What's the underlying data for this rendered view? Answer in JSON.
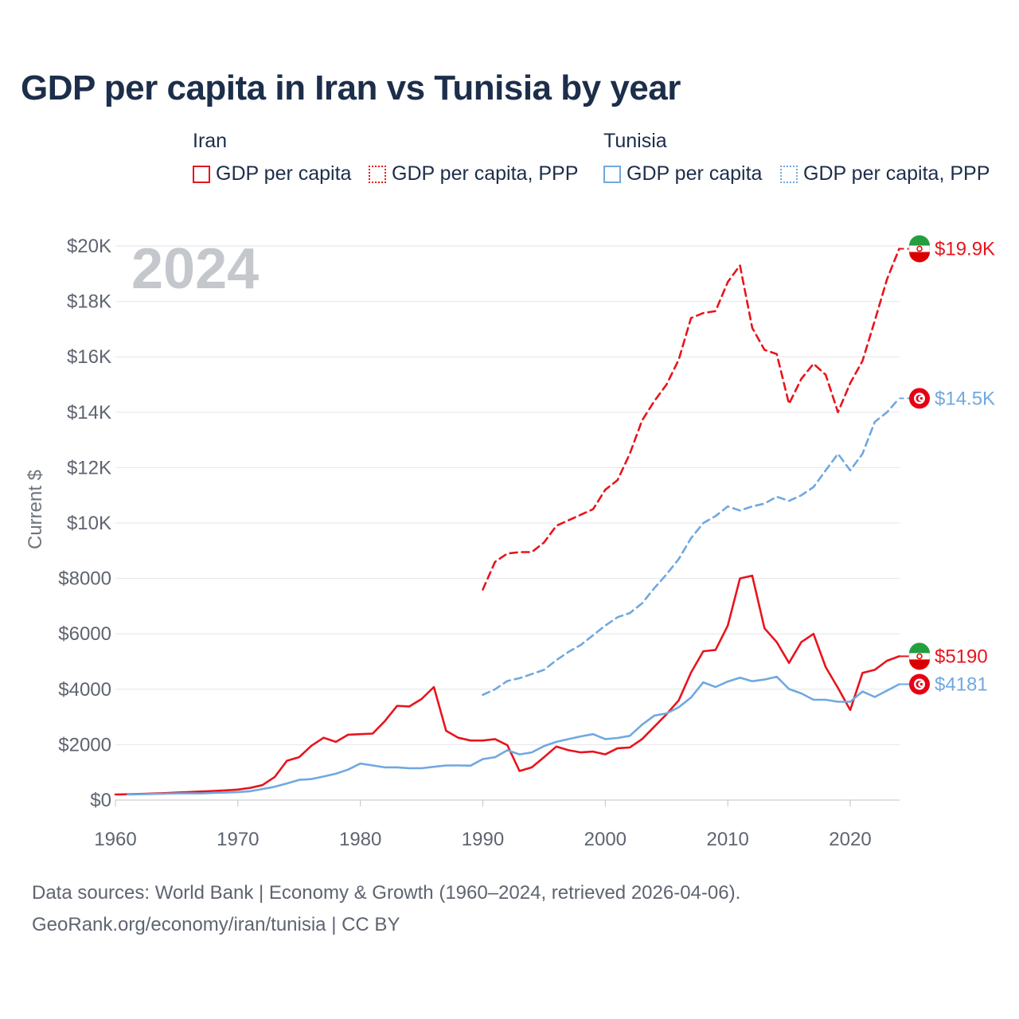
{
  "title": "GDP per capita in Iran vs Tunisia by year",
  "legend": {
    "groups": [
      {
        "name": "Iran",
        "items": [
          "GDP per capita",
          "GDP per capita, PPP"
        ]
      },
      {
        "name": "Tunisia",
        "items": [
          "GDP per capita",
          "GDP per capita, PPP"
        ]
      }
    ]
  },
  "footer": {
    "line1": "Data sources: World Bank | Economy & Growth (1960–2024, retrieved 2026-04-06).",
    "line2": "GeoRank.org/economy/iran/tunisia | CC BY"
  },
  "colors": {
    "iran": "#e8141c",
    "tunisia": "#70a8e0",
    "grid": "#e4e6ea",
    "axis": "#bfc3c9"
  },
  "chart_data": {
    "type": "line",
    "year_label": "2024",
    "ylabel": "Current $",
    "xlim": [
      1960,
      2025
    ],
    "ylim": [
      0,
      20000
    ],
    "xticks": [
      1960,
      1970,
      1980,
      1990,
      2000,
      2010,
      2020
    ],
    "yticks": [
      {
        "value": 0,
        "label": "$0"
      },
      {
        "value": 2000,
        "label": "$2000"
      },
      {
        "value": 4000,
        "label": "$4000"
      },
      {
        "value": 6000,
        "label": "$6000"
      },
      {
        "value": 8000,
        "label": "$8000"
      },
      {
        "value": 10000,
        "label": "$10K"
      },
      {
        "value": 12000,
        "label": "$12K"
      },
      {
        "value": 14000,
        "label": "$14K"
      },
      {
        "value": 16000,
        "label": "$16K"
      },
      {
        "value": 18000,
        "label": "$18K"
      },
      {
        "value": 20000,
        "label": "$20K"
      }
    ],
    "series": [
      {
        "name": "Iran GDP per capita",
        "country": "iran",
        "dash": false,
        "x_start": 1960,
        "values": [
          200,
          210,
          220,
          235,
          250,
          270,
          290,
          310,
          330,
          350,
          380,
          440,
          540,
          830,
          1420,
          1550,
          1960,
          2250,
          2100,
          2360,
          2380,
          2400,
          2850,
          3400,
          3380,
          3650,
          4080,
          2500,
          2250,
          2150,
          2150,
          2200,
          1980,
          1050,
          1180,
          1550,
          1930,
          1800,
          1720,
          1750,
          1650,
          1870,
          1900,
          2200,
          2650,
          3100,
          3600,
          4600,
          5370,
          5420,
          6300,
          8000,
          8100,
          6200,
          5700,
          4950,
          5700,
          6000,
          4800,
          4050,
          3250,
          4590,
          4700,
          5030,
          5190
        ],
        "end_label": "$5190"
      },
      {
        "name": "Iran GDP per capita, PPP",
        "country": "iran",
        "dash": true,
        "x_start": 1990,
        "values": [
          7600,
          8600,
          8900,
          8950,
          8950,
          9300,
          9900,
          10100,
          10300,
          10500,
          11200,
          11550,
          12500,
          13700,
          14400,
          15000,
          15900,
          17400,
          17580,
          17650,
          18700,
          19300,
          17050,
          16250,
          16100,
          14300,
          15200,
          15750,
          15350,
          14000,
          15050,
          15850,
          17300,
          18800,
          19900
        ],
        "end_label": "$19.9K"
      },
      {
        "name": "Tunisia GDP per capita",
        "country": "tunisia",
        "dash": false,
        "x_start": 1961,
        "values": [
          200,
          210,
          220,
          230,
          240,
          240,
          240,
          260,
          270,
          290,
          320,
          400,
          480,
          600,
          730,
          760,
          850,
          950,
          1100,
          1320,
          1250,
          1180,
          1180,
          1150,
          1150,
          1200,
          1250,
          1250,
          1240,
          1480,
          1550,
          1800,
          1650,
          1720,
          1950,
          2100,
          2200,
          2300,
          2380,
          2200,
          2240,
          2320,
          2720,
          3050,
          3130,
          3350,
          3700,
          4250,
          4080,
          4280,
          4420,
          4290,
          4350,
          4450,
          4010,
          3850,
          3620,
          3620,
          3550,
          3550,
          3920,
          3720,
          3950,
          4181
        ],
        "end_label": "$4181"
      },
      {
        "name": "Tunisia GDP per capita, PPP",
        "country": "tunisia",
        "dash": true,
        "x_start": 1990,
        "values": [
          3800,
          4000,
          4300,
          4400,
          4550,
          4700,
          5050,
          5350,
          5600,
          5950,
          6300,
          6600,
          6750,
          7100,
          7650,
          8150,
          8700,
          9450,
          10000,
          10250,
          10600,
          10450,
          10600,
          10700,
          10950,
          10800,
          11000,
          11300,
          11900,
          12500,
          11900,
          12500,
          13650,
          14000,
          14500
        ],
        "end_label": "$14.5K"
      }
    ]
  }
}
